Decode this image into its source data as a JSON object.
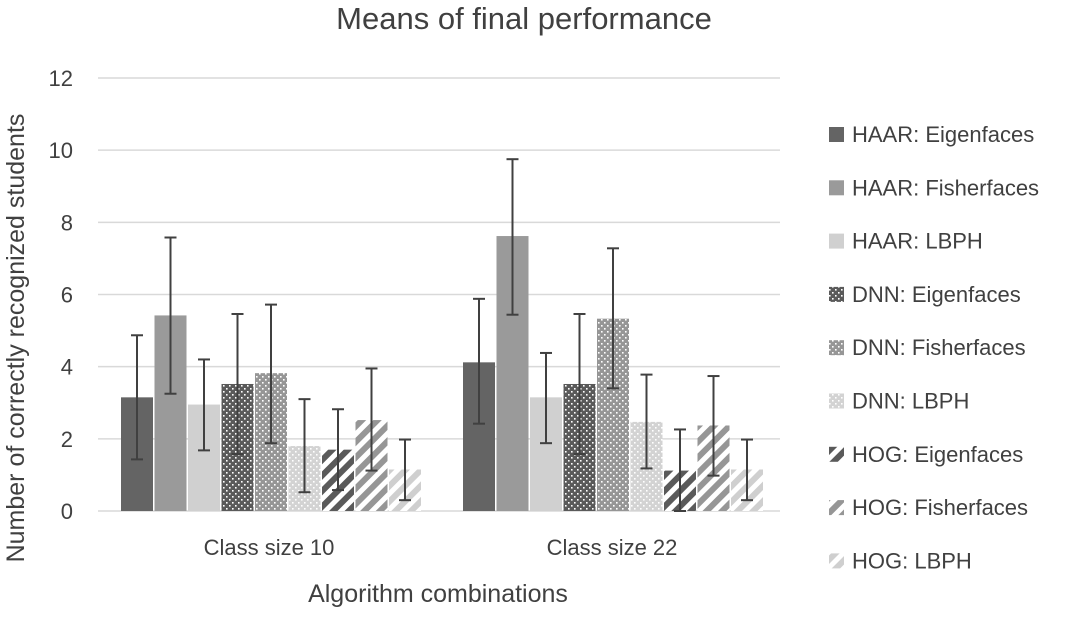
{
  "chart_data": {
    "type": "bar",
    "title": "Means of final performance",
    "xlabel": "Algorithm combinations",
    "ylabel": "Number of correctly recognized students",
    "ylim": [
      0,
      12
    ],
    "yticks": [
      "0",
      "2",
      "4",
      "6",
      "8",
      "10",
      "12"
    ],
    "grid": true,
    "legend_position": "right",
    "categories": [
      "Class size 10",
      "Class size 22"
    ],
    "series": [
      {
        "name": "HAAR: Eigenfaces",
        "values": [
          3.15,
          4.12
        ],
        "errors": [
          [
            1.43,
            4.87
          ],
          [
            2.42,
            5.88
          ]
        ],
        "color": "#646464",
        "pattern": "solid"
      },
      {
        "name": "HAAR: Fisherfaces",
        "values": [
          5.42,
          7.62
        ],
        "errors": [
          [
            3.25,
            7.58
          ],
          [
            5.44,
            9.75
          ]
        ],
        "color": "#9a9a9a",
        "pattern": "solid"
      },
      {
        "name": "HAAR: LBPH",
        "values": [
          2.95,
          3.15
        ],
        "errors": [
          [
            1.68,
            4.2
          ],
          [
            1.88,
            4.38
          ]
        ],
        "color": "#d0d0d0",
        "pattern": "solid"
      },
      {
        "name": "DNN: Eigenfaces",
        "values": [
          3.52,
          3.52
        ],
        "errors": [
          [
            1.58,
            5.46
          ],
          [
            1.58,
            5.46
          ]
        ],
        "color": "#5a5a5a",
        "pattern": "dots"
      },
      {
        "name": "DNN: Fisherfaces",
        "values": [
          3.82,
          5.33
        ],
        "errors": [
          [
            1.88,
            5.72
          ],
          [
            3.4,
            7.28
          ]
        ],
        "color": "#969696",
        "pattern": "dots"
      },
      {
        "name": "DNN: LBPH",
        "values": [
          1.8,
          2.47
        ],
        "errors": [
          [
            0.52,
            3.1
          ],
          [
            1.18,
            3.78
          ]
        ],
        "color": "#d3d3d3",
        "pattern": "dots"
      },
      {
        "name": "HOG: Eigenfaces",
        "values": [
          1.7,
          1.12
        ],
        "errors": [
          [
            0.58,
            2.82
          ],
          [
            0.0,
            2.26
          ]
        ],
        "color": "#5a5a5a",
        "pattern": "stripes"
      },
      {
        "name": "HOG: Fisherfaces",
        "values": [
          2.52,
          2.37
        ],
        "errors": [
          [
            1.12,
            3.95
          ],
          [
            0.98,
            3.74
          ]
        ],
        "color": "#969696",
        "pattern": "stripes"
      },
      {
        "name": "HOG: LBPH",
        "values": [
          1.15,
          1.15
        ],
        "errors": [
          [
            0.3,
            1.98
          ],
          [
            0.3,
            1.98
          ]
        ],
        "color": "#cfcfcf",
        "pattern": "stripes"
      }
    ]
  }
}
